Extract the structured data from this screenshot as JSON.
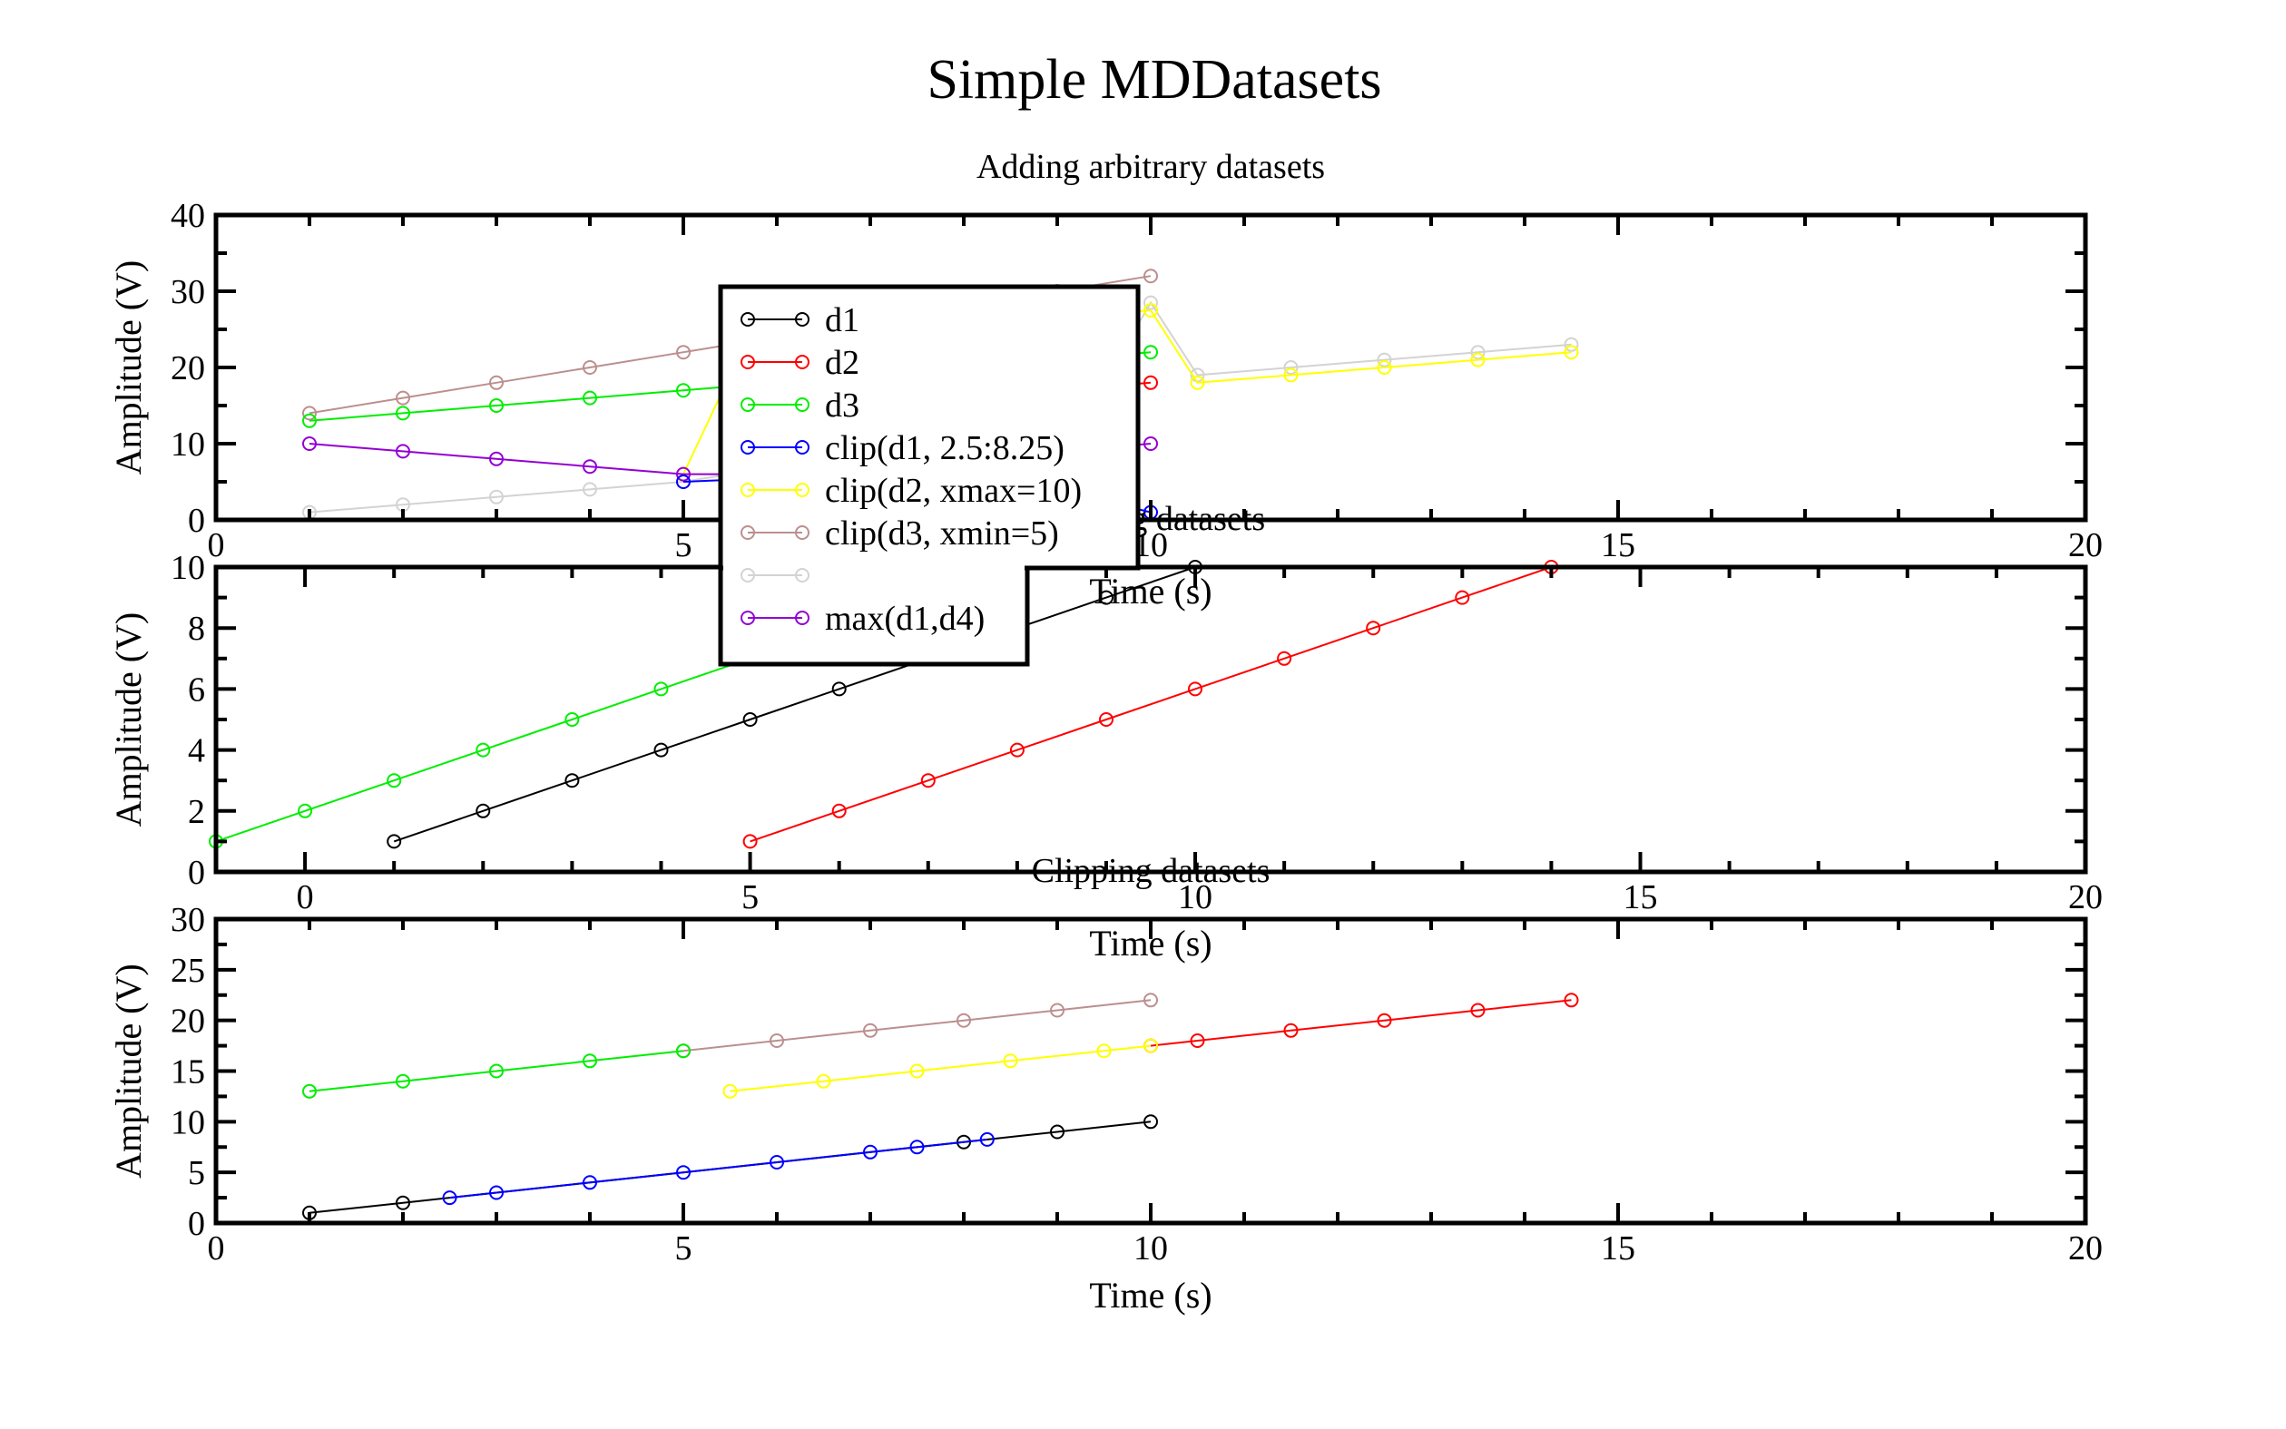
{
  "figure": {
    "title": "Simple MDDatasets"
  },
  "colors": {
    "black": "#000000",
    "red": "#ff0000",
    "green": "#00ee00",
    "blue": "#0000ff",
    "yellow": "#ffff00",
    "brown": "#bc8f8f",
    "purple": "#9400d3",
    "gray": "#d3d3d3"
  },
  "chart_data": [
    {
      "type": "line",
      "title": "Adding arbitrary datasets",
      "xlabel": "Time (s)",
      "ylabel": "Amplitude (V)",
      "xlim": [
        0,
        20
      ],
      "ylim": [
        0,
        40
      ],
      "xticks": [
        0,
        5,
        10,
        15,
        20
      ],
      "yticks": [
        0,
        10,
        20,
        30,
        40
      ],
      "legend": {
        "position": "upper-left-center",
        "entries": [
          "d1",
          "d2",
          "d3",
          "clip(d1, 2.5:8.25)",
          "clip(d2, xmax=10)",
          "clip(d3, xmin=5)",
          "",
          "max(d1,d4)"
        ]
      },
      "series": [
        {
          "name": "",
          "color": "gray",
          "x": [
            1,
            2,
            3,
            4,
            5,
            5.5,
            6,
            6.5,
            7,
            7.5,
            8,
            8.5,
            9,
            9.5,
            10,
            10.5,
            11.5,
            12.5,
            13.5,
            14.5
          ],
          "y": [
            1,
            2,
            3,
            4,
            5,
            6,
            7,
            8,
            9,
            10,
            11.5,
            13.5,
            15.5,
            18,
            28.5,
            19,
            20,
            21,
            22,
            23
          ]
        },
        {
          "name": "",
          "color": "yellow",
          "x": [
            5,
            5.5,
            6,
            6.5,
            7,
            7.5,
            8,
            8.5,
            9,
            9.5,
            10,
            10.5,
            11.5,
            12.5,
            13.5,
            14.5
          ],
          "y": [
            6,
            19,
            20,
            21,
            22,
            23,
            24,
            25,
            26,
            27,
            27.5,
            18,
            19,
            20,
            21,
            22
          ]
        },
        {
          "name": "",
          "color": "brown",
          "x": [
            1,
            2,
            3,
            4,
            5,
            6,
            7,
            8,
            9,
            10
          ],
          "y": [
            14,
            16,
            18,
            20,
            22,
            24,
            26,
            28,
            30,
            32
          ]
        },
        {
          "name": "",
          "color": "green",
          "x": [
            1,
            2,
            3,
            4,
            5,
            6,
            7,
            8,
            9,
            10
          ],
          "y": [
            13,
            14,
            15,
            16,
            17,
            18,
            19,
            20,
            21,
            22
          ]
        },
        {
          "name": "",
          "color": "purple",
          "x": [
            1,
            2,
            3,
            4,
            5,
            6,
            7,
            8,
            9,
            10
          ],
          "y": [
            10,
            9,
            8,
            7,
            6,
            6,
            7,
            8,
            9,
            10
          ]
        },
        {
          "name": "",
          "color": "blue",
          "x": [
            5,
            6,
            7,
            8,
            9,
            10
          ],
          "y": [
            5,
            5.5,
            5,
            5,
            4,
            1
          ]
        },
        {
          "name": "",
          "color": "red",
          "x": [
            9,
            10
          ],
          "y": [
            17,
            18
          ]
        }
      ]
    },
    {
      "type": "line",
      "title": "Shifting datasets",
      "xlabel": "Time (s)",
      "ylabel": "Amplitude (V)",
      "xlim": [
        -1,
        20
      ],
      "ylim": [
        0,
        10
      ],
      "xticks": [
        0,
        5,
        10,
        15,
        20
      ],
      "yticks": [
        0,
        2,
        4,
        6,
        8,
        10
      ],
      "series": [
        {
          "name": "",
          "color": "green",
          "x": [
            -1,
            0,
            1,
            2,
            3,
            4,
            5,
            6,
            7,
            8
          ],
          "y": [
            1,
            2,
            3,
            4,
            5,
            6,
            7,
            8,
            9,
            10
          ]
        },
        {
          "name": "",
          "color": "black",
          "x": [
            1,
            2,
            3,
            4,
            5,
            6,
            7,
            8,
            9,
            10
          ],
          "y": [
            1,
            2,
            3,
            4,
            5,
            6,
            7,
            8,
            9,
            10
          ]
        },
        {
          "name": "",
          "color": "red",
          "x": [
            5,
            6,
            7,
            8,
            9,
            10,
            11,
            12,
            13,
            14
          ],
          "y": [
            1,
            2,
            3,
            4,
            5,
            6,
            7,
            8,
            9,
            10
          ]
        }
      ]
    },
    {
      "type": "line",
      "title": "Clipping datasets",
      "xlabel": "Time (s)",
      "ylabel": "Amplitude (V)",
      "xlim": [
        0,
        20
      ],
      "ylim": [
        0,
        30
      ],
      "xticks": [
        0,
        5,
        10,
        15,
        20
      ],
      "yticks": [
        0,
        5,
        10,
        15,
        20,
        25,
        30
      ],
      "series": [
        {
          "name": "",
          "color": "brown",
          "x": [
            5,
            6,
            7,
            8,
            9,
            10
          ],
          "y": [
            17,
            18,
            19,
            20,
            21,
            22
          ]
        },
        {
          "name": "",
          "color": "green",
          "x": [
            1,
            2,
            3,
            4,
            5
          ],
          "y": [
            13,
            14,
            15,
            16,
            17
          ]
        },
        {
          "name": "",
          "color": "red",
          "x": [
            10,
            10.5,
            11.5,
            12.5,
            13.5,
            14.5
          ],
          "y": [
            17.5,
            18,
            19,
            20,
            21,
            22
          ]
        },
        {
          "name": "",
          "color": "yellow",
          "x": [
            5.5,
            6.5,
            7.5,
            8.5,
            9.5,
            10
          ],
          "y": [
            13,
            14,
            15,
            16,
            17,
            17.5
          ]
        },
        {
          "name": "",
          "color": "black",
          "x": [
            1,
            2,
            8,
            9,
            10
          ],
          "y": [
            1,
            2,
            8,
            9,
            10
          ]
        },
        {
          "name": "",
          "color": "blue",
          "x": [
            2.5,
            3,
            4,
            5,
            6,
            7,
            7.5,
            8.25
          ],
          "y": [
            2.5,
            3,
            4,
            5,
            6,
            7,
            7.5,
            8.25
          ]
        }
      ]
    }
  ]
}
